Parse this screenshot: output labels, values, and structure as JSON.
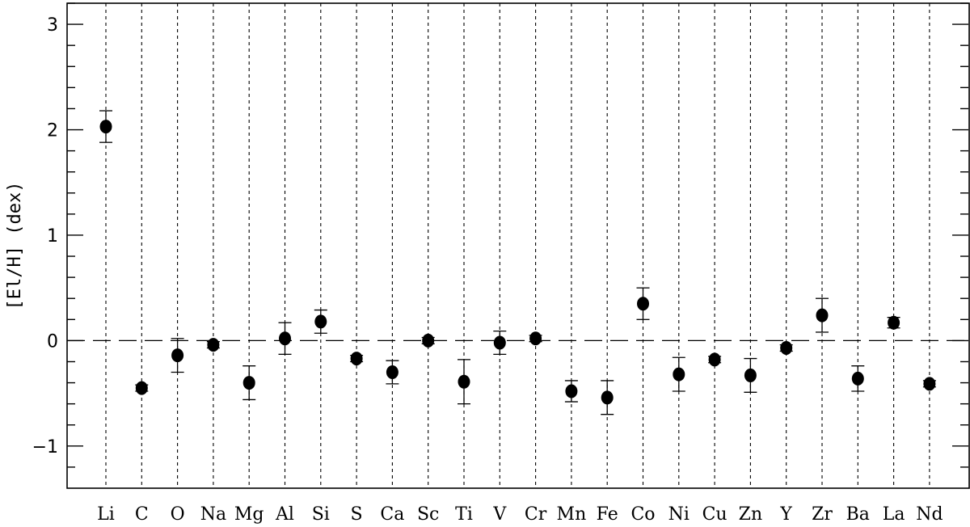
{
  "chart_data": {
    "type": "scatter",
    "title": "",
    "xlabel": "",
    "ylabel": "[El/H] (dex)",
    "ylim": [
      -1.4,
      3.2
    ],
    "yticks": [
      -1,
      0,
      1,
      2,
      3
    ],
    "grid": "vertical dotted lines at each element",
    "reference_line": {
      "y": 0,
      "style": "dashed"
    },
    "categories": [
      "Li",
      "C",
      "O",
      "Na",
      "Mg",
      "Al",
      "Si",
      "S",
      "Ca",
      "Sc",
      "Ti",
      "V",
      "Cr",
      "Mn",
      "Fe",
      "Co",
      "Ni",
      "Cu",
      "Zn",
      "Y",
      "Zr",
      "Ba",
      "La",
      "Nd"
    ],
    "values": [
      2.03,
      -0.45,
      -0.14,
      -0.04,
      -0.4,
      0.02,
      0.18,
      -0.17,
      -0.3,
      0.0,
      -0.39,
      -0.02,
      0.02,
      -0.48,
      -0.54,
      0.35,
      -0.32,
      -0.18,
      -0.33,
      -0.07,
      0.24,
      -0.36,
      0.17,
      -0.41
    ],
    "errors": [
      0.15,
      0.03,
      0.16,
      0.03,
      0.16,
      0.15,
      0.11,
      0.03,
      0.11,
      0.03,
      0.21,
      0.11,
      0.03,
      0.1,
      0.16,
      0.15,
      0.16,
      0.03,
      0.16,
      0.03,
      0.16,
      0.12,
      0.05,
      0.03
    ]
  }
}
